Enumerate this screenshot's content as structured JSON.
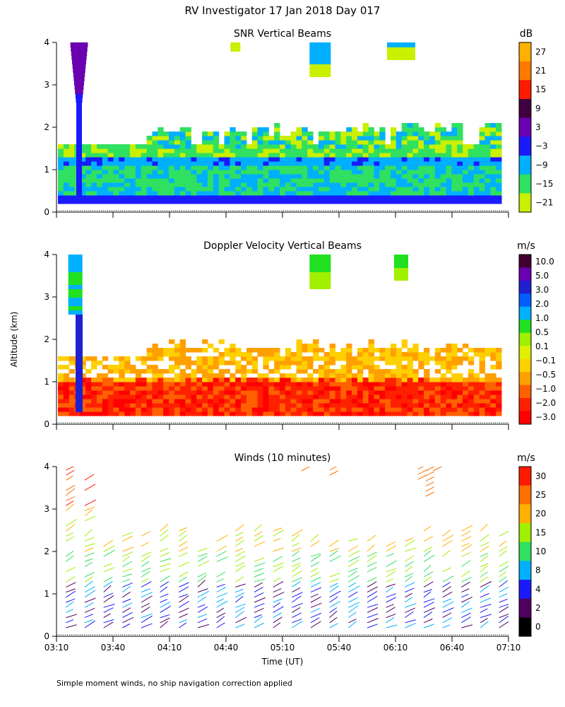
{
  "figure_title": "RV Investigator  17 Jan 2018 Day 017",
  "ylabel": "Altitude (km)",
  "xlabel": "Time (UT)",
  "footnote": "Simple moment winds, no ship navigation correction applied",
  "x_ticks": [
    "03:10",
    "03:40",
    "04:10",
    "04:40",
    "05:10",
    "05:40",
    "06:10",
    "06:40",
    "07:10"
  ],
  "y_ticks": [
    "0",
    "1",
    "2",
    "3",
    "4"
  ],
  "chart_data": [
    {
      "type": "heatmap",
      "title": "SNR Vertical Beams",
      "unit": "dB",
      "ylim": [
        0,
        4
      ],
      "xlim": [
        "03:10",
        "07:10"
      ],
      "colorbar_labels": [
        "27",
        "21",
        "15",
        "9",
        "3",
        "−3",
        "−9",
        "−15",
        "−21"
      ],
      "colorbar_colors": [
        "#ffb000",
        "#ff7a00",
        "#ff1a00",
        "#400040",
        "#6a00b0",
        "#1a1aff",
        "#00b0ff",
        "#30e060",
        "#c8f000"
      ]
    },
    {
      "type": "heatmap",
      "title": "Doppler Velocity Vertical Beams",
      "unit": "m/s",
      "ylim": [
        0,
        4
      ],
      "xlim": [
        "03:10",
        "07:10"
      ],
      "colorbar_labels": [
        "10.0",
        "5.0",
        "3.0",
        "2.0",
        "1.0",
        "0.5",
        "0.1",
        "−0.1",
        "−0.5",
        "−1.0",
        "−2.0",
        "−3.0"
      ],
      "colorbar_colors": [
        "#400030",
        "#6a00b0",
        "#2020d0",
        "#0060ff",
        "#00b0ff",
        "#20e020",
        "#a0f000",
        "#e0f000",
        "#ffd000",
        "#ffa000",
        "#ff6000",
        "#ff2000",
        "#ff0000"
      ]
    },
    {
      "type": "scatter",
      "title": "Winds (10 minutes)",
      "unit": "m/s",
      "ylim": [
        0,
        4
      ],
      "xlim": [
        "03:10",
        "07:10"
      ],
      "colorbar_labels": [
        "30",
        "25",
        "20",
        "15",
        "10",
        "8",
        "4",
        "2",
        "0"
      ],
      "colorbar_colors": [
        "#ff1a00",
        "#ff7000",
        "#ffb000",
        "#a0f000",
        "#30e060",
        "#00b0ff",
        "#1a1aff",
        "#500060",
        "#000000"
      ]
    }
  ]
}
